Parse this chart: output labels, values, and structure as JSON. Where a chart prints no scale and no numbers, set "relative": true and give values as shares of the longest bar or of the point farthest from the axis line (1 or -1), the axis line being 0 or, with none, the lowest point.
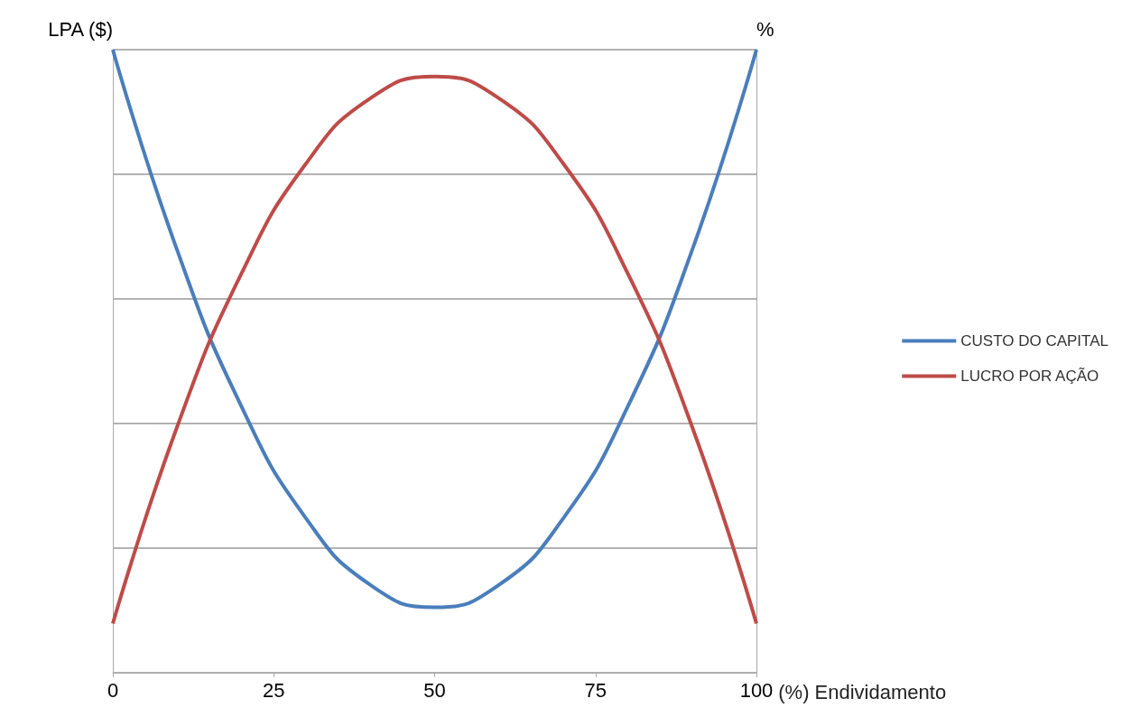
{
  "chart_data": {
    "type": "line",
    "xlabel": "(%) Endividamento",
    "ylabel": "LPA ($)",
    "y2label": "%",
    "x": [
      0,
      10,
      20,
      30,
      40,
      50,
      60,
      70,
      80,
      90,
      100
    ],
    "xlim": [
      0,
      100
    ],
    "xticks": [
      0,
      25,
      50,
      75,
      100
    ],
    "relative": true,
    "grid": "y",
    "legend": "right",
    "marker": "none",
    "series": [
      {
        "name": "CUSTO DO CAPITAL",
        "color": "#4a7ebb",
        "values": [
          1,
          0.678,
          0.427,
          0.248,
          0.141,
          0.105,
          0.141,
          0.248,
          0.427,
          0.678,
          1
        ]
      },
      {
        "name": "LUCRO POR AÇÃO",
        "color": "#be4b48",
        "values": [
          0.079,
          0.395,
          0.641,
          0.817,
          0.922,
          0.957,
          0.922,
          0.817,
          0.641,
          0.395,
          0.079
        ]
      }
    ]
  }
}
